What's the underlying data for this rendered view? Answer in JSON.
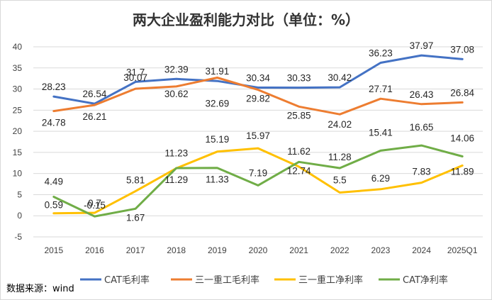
{
  "chart_data": {
    "type": "line",
    "title": "两大企业盈利能力对比（单位：%）",
    "categories": [
      "2015",
      "2016",
      "2017",
      "2018",
      "2019",
      "2020",
      "2021",
      "2022",
      "2023",
      "2024",
      "2025Q1"
    ],
    "ylim": [
      -5,
      40
    ],
    "yticks": [
      -5,
      0,
      5,
      10,
      15,
      20,
      25,
      30,
      35,
      40
    ],
    "grid": true,
    "legend_position": "bottom",
    "series": [
      {
        "name": "CAT毛利率",
        "color": "#4472C4",
        "values": [
          28.23,
          26.54,
          31.7,
          32.39,
          31.91,
          30.34,
          30.33,
          30.42,
          36.23,
          37.97,
          37.08
        ]
      },
      {
        "name": "三一重工毛利率",
        "color": "#ED7D31",
        "values": [
          24.78,
          26.21,
          30.07,
          30.62,
          32.69,
          29.82,
          25.85,
          24.02,
          27.71,
          26.43,
          26.84
        ]
      },
      {
        "name": "三一重工净利率",
        "color": "#FFC000",
        "values": [
          0.59,
          0.7,
          5.81,
          11.23,
          15.19,
          15.97,
          11.62,
          5.5,
          6.29,
          7.83,
          11.89
        ]
      },
      {
        "name": "CAT净利率",
        "color": "#70AD47",
        "values": [
          4.49,
          -0.15,
          1.67,
          11.29,
          11.33,
          7.19,
          12.74,
          11.28,
          15.41,
          16.65,
          14.06
        ]
      }
    ]
  },
  "footer": {
    "source": "数据来源：wind"
  }
}
